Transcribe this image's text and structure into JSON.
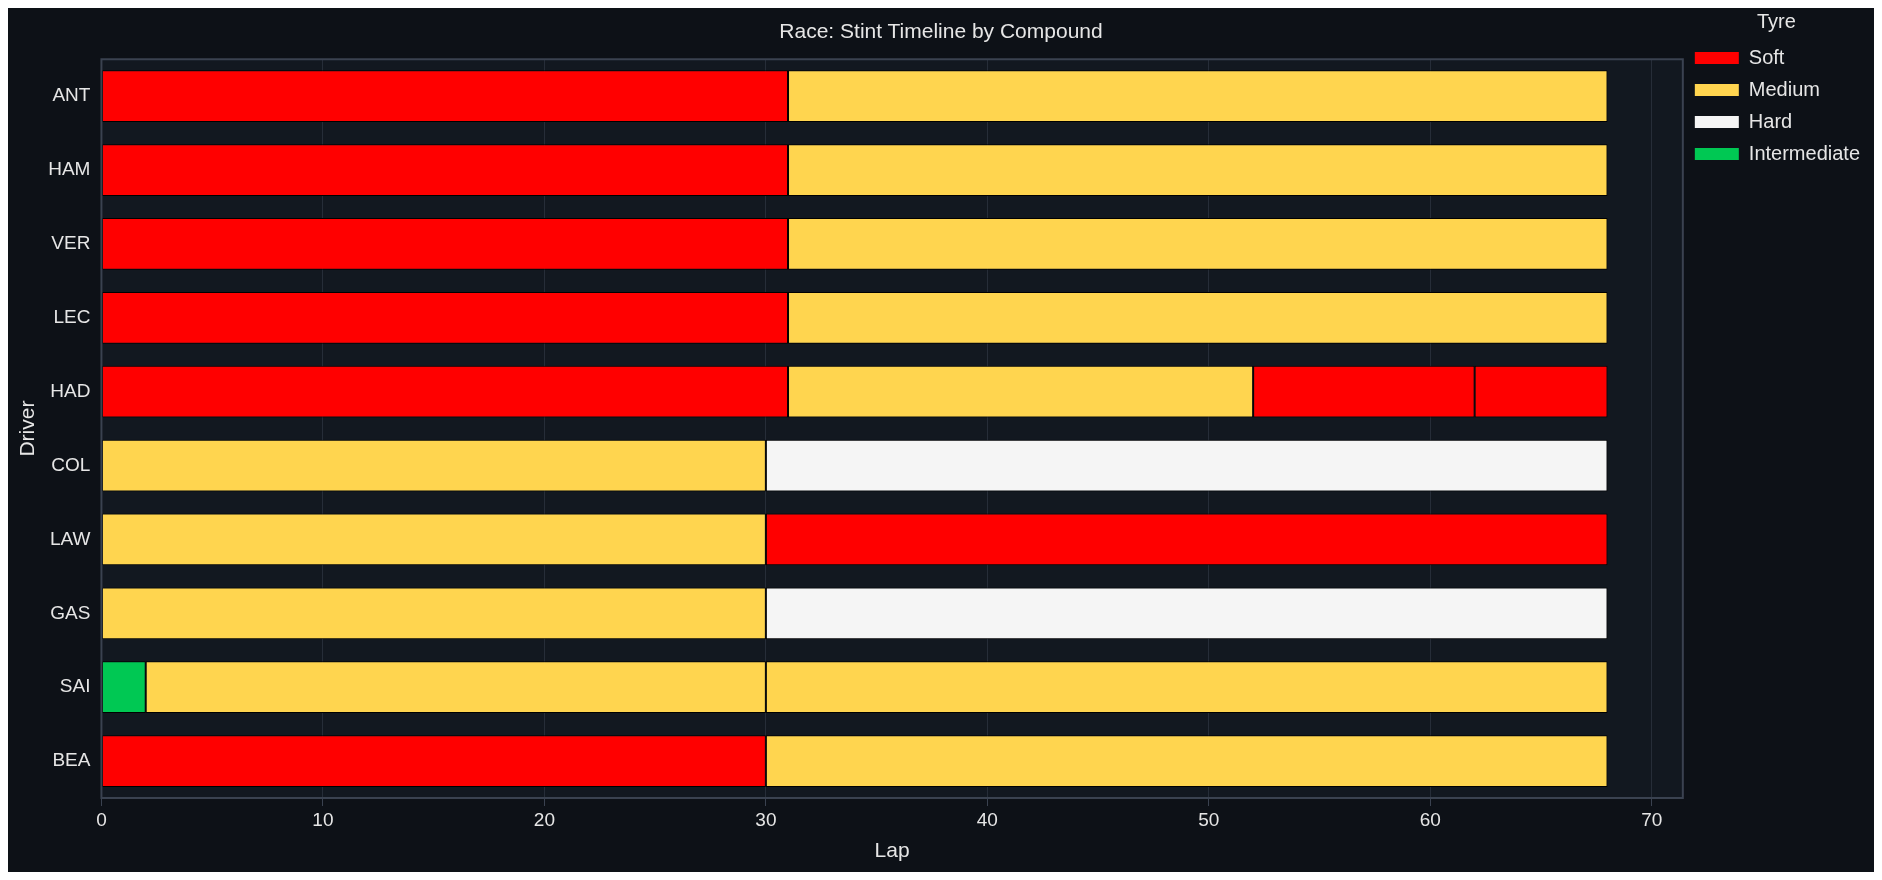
{
  "chart_data": {
    "type": "bar",
    "orientation": "horizontal",
    "title": "Race: Stint Timeline by Compound",
    "xlabel": "Lap",
    "ylabel": "Driver",
    "legend_title": "Tyre",
    "categories": [
      "ANT",
      "HAM",
      "VER",
      "LEC",
      "HAD",
      "COL",
      "LAW",
      "GAS",
      "SAI",
      "BEA"
    ],
    "series": [
      {
        "name": "Soft",
        "color": "#ff0000",
        "base": [
          0,
          0,
          0,
          0,
          0,
          null,
          30,
          null,
          null,
          0
        ],
        "values": [
          31,
          31,
          31,
          31,
          31,
          null,
          38,
          null,
          null,
          30
        ]
      },
      {
        "name": "Medium",
        "color": "#ffd54f",
        "base": [
          31,
          31,
          31,
          31,
          31,
          0,
          0,
          0,
          2,
          30
        ],
        "values": [
          37,
          37,
          37,
          37,
          21,
          30,
          30,
          30,
          28,
          38
        ]
      },
      {
        "name": "Hard",
        "color": "#f5f5f5",
        "base": [
          null,
          null,
          null,
          null,
          null,
          30,
          null,
          30,
          null,
          null
        ],
        "values": [
          null,
          null,
          null,
          null,
          null,
          38,
          null,
          38,
          null,
          null
        ]
      },
      {
        "name": "Intermediate",
        "color": "#00c853",
        "base": [
          null,
          null,
          null,
          null,
          null,
          null,
          null,
          null,
          0,
          null
        ],
        "values": [
          null,
          null,
          null,
          null,
          null,
          null,
          null,
          null,
          2,
          null
        ]
      },
      {
        "color": "#ff0000",
        "base": [
          null,
          null,
          null,
          null,
          52,
          null,
          null,
          null,
          null,
          null
        ],
        "values": [
          null,
          null,
          null,
          null,
          10,
          null,
          null,
          null,
          null,
          null
        ]
      },
      {
        "color": "#ff0000",
        "base": [
          null,
          null,
          null,
          null,
          62,
          null,
          null,
          null,
          null,
          null
        ],
        "values": [
          null,
          null,
          null,
          null,
          6,
          null,
          null,
          null,
          null,
          null
        ]
      },
      {
        "color": "#ffd54f",
        "base": [
          null,
          null,
          null,
          null,
          null,
          null,
          null,
          null,
          30,
          null
        ],
        "values": [
          null,
          null,
          null,
          null,
          null,
          null,
          null,
          null,
          38,
          null
        ]
      }
    ],
    "xlim": [
      0,
      71.4
    ],
    "xticks": [
      0,
      10,
      20,
      30,
      40,
      50,
      60,
      70
    ],
    "grid": "x",
    "legend": "top right"
  }
}
